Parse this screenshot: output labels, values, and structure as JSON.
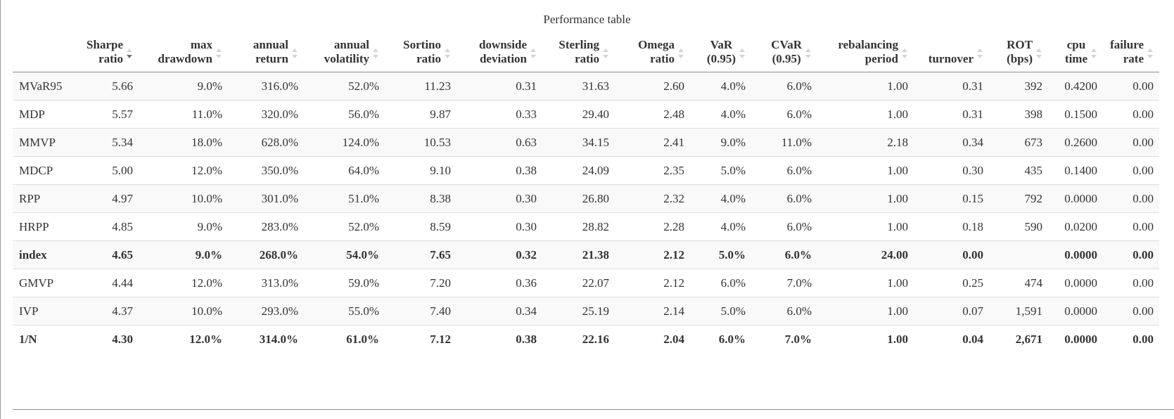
{
  "caption": "Performance table",
  "columns": [
    {
      "l1": "Sharpe",
      "l2": "ratio",
      "sort": "desc"
    },
    {
      "l1": "max",
      "l2": "drawdown",
      "sort": "none"
    },
    {
      "l1": "annual",
      "l2": "return",
      "sort": "none"
    },
    {
      "l1": "annual",
      "l2": "volatility",
      "sort": "none"
    },
    {
      "l1": "Sortino",
      "l2": "ratio",
      "sort": "none"
    },
    {
      "l1": "downside",
      "l2": "deviation",
      "sort": "none"
    },
    {
      "l1": "Sterling",
      "l2": "ratio",
      "sort": "none"
    },
    {
      "l1": "Omega",
      "l2": "ratio",
      "sort": "none"
    },
    {
      "l1": "VaR",
      "l2": "(0.95)",
      "sort": "none"
    },
    {
      "l1": "CVaR",
      "l2": "(0.95)",
      "sort": "none"
    },
    {
      "l1": "rebalancing",
      "l2": "period",
      "sort": "none"
    },
    {
      "l1": "",
      "l2": "turnover",
      "sort": "none"
    },
    {
      "l1": "ROT",
      "l2": "(bps)",
      "sort": "none"
    },
    {
      "l1": "cpu",
      "l2": "time",
      "sort": "none"
    },
    {
      "l1": "failure",
      "l2": "rate",
      "sort": "none"
    }
  ],
  "rows": [
    {
      "name": "MVaR95",
      "bold": false,
      "values": [
        "5.66",
        "9.0%",
        "316.0%",
        "52.0%",
        "11.23",
        "0.31",
        "31.63",
        "2.60",
        "4.0%",
        "6.0%",
        "1.00",
        "0.31",
        "392",
        "0.4200",
        "0.00"
      ]
    },
    {
      "name": "MDP",
      "bold": false,
      "values": [
        "5.57",
        "11.0%",
        "320.0%",
        "56.0%",
        "9.87",
        "0.33",
        "29.40",
        "2.48",
        "4.0%",
        "6.0%",
        "1.00",
        "0.31",
        "398",
        "0.1500",
        "0.00"
      ]
    },
    {
      "name": "MMVP",
      "bold": false,
      "values": [
        "5.34",
        "18.0%",
        "628.0%",
        "124.0%",
        "10.53",
        "0.63",
        "34.15",
        "2.41",
        "9.0%",
        "11.0%",
        "2.18",
        "0.34",
        "673",
        "0.2600",
        "0.00"
      ]
    },
    {
      "name": "MDCP",
      "bold": false,
      "values": [
        "5.00",
        "12.0%",
        "350.0%",
        "64.0%",
        "9.10",
        "0.38",
        "24.09",
        "2.35",
        "5.0%",
        "6.0%",
        "1.00",
        "0.30",
        "435",
        "0.1400",
        "0.00"
      ]
    },
    {
      "name": "RPP",
      "bold": false,
      "values": [
        "4.97",
        "10.0%",
        "301.0%",
        "51.0%",
        "8.38",
        "0.30",
        "26.80",
        "2.32",
        "4.0%",
        "6.0%",
        "1.00",
        "0.15",
        "792",
        "0.0000",
        "0.00"
      ]
    },
    {
      "name": "HRPP",
      "bold": false,
      "values": [
        "4.85",
        "9.0%",
        "283.0%",
        "52.0%",
        "8.59",
        "0.30",
        "28.82",
        "2.28",
        "4.0%",
        "6.0%",
        "1.00",
        "0.18",
        "590",
        "0.0200",
        "0.00"
      ]
    },
    {
      "name": "index",
      "bold": true,
      "values": [
        "4.65",
        "9.0%",
        "268.0%",
        "54.0%",
        "7.65",
        "0.32",
        "21.38",
        "2.12",
        "5.0%",
        "6.0%",
        "24.00",
        "0.00",
        "",
        "0.0000",
        "0.00"
      ]
    },
    {
      "name": "GMVP",
      "bold": false,
      "values": [
        "4.44",
        "12.0%",
        "313.0%",
        "59.0%",
        "7.20",
        "0.36",
        "22.07",
        "2.12",
        "6.0%",
        "7.0%",
        "1.00",
        "0.25",
        "474",
        "0.0000",
        "0.00"
      ]
    },
    {
      "name": "IVP",
      "bold": false,
      "values": [
        "4.37",
        "10.0%",
        "293.0%",
        "55.0%",
        "7.40",
        "0.34",
        "25.19",
        "2.14",
        "5.0%",
        "6.0%",
        "1.00",
        "0.07",
        "1,591",
        "0.0000",
        "0.00"
      ]
    },
    {
      "name": "1/N",
      "bold": true,
      "values": [
        "4.30",
        "12.0%",
        "314.0%",
        "61.0%",
        "7.12",
        "0.38",
        "22.16",
        "2.04",
        "6.0%",
        "7.0%",
        "1.00",
        "0.04",
        "2,671",
        "0.0000",
        "0.00"
      ]
    }
  ],
  "colors": {
    "text": "#333333",
    "row_stripe": "#f9f9f9",
    "row_border": "#dddddd",
    "header_border": "#8c8c8c",
    "sort_active": "#707070",
    "sort_inactive": "#d4d4d4"
  },
  "icons": {
    "sort_indicator": "sort-arrows-icon"
  }
}
